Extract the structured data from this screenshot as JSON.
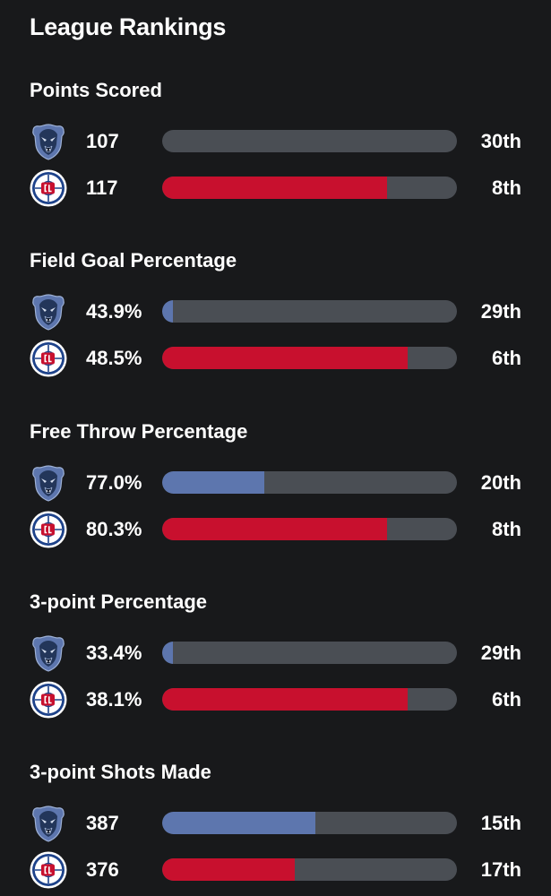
{
  "page": {
    "title": "League Rankings"
  },
  "colors": {
    "background": "#18191b",
    "track": "#4a4e54",
    "grizzlies_bar": "#5d76ae",
    "clippers_bar": "#c8102e",
    "grizzlies_logo": "#23365a",
    "clippers_logo": "#1d428a"
  },
  "teams": {
    "grizzlies": {
      "logo_icon": "grizzlies-logo-icon"
    },
    "clippers": {
      "logo_icon": "clippers-logo-icon"
    }
  },
  "stats": [
    {
      "title": "Points Scored",
      "rows": [
        {
          "team": "grizzlies",
          "value": "107",
          "rank": "30th",
          "rank_number": 30,
          "bar_fill_fraction": 0.0
        },
        {
          "team": "clippers",
          "value": "117",
          "rank": "8th",
          "rank_number": 8,
          "bar_fill_fraction": 0.763
        }
      ]
    },
    {
      "title": "Field Goal Percentage",
      "rows": [
        {
          "team": "grizzlies",
          "value": "43.9%",
          "rank": "29th",
          "rank_number": 29,
          "bar_fill_fraction": 0.034
        },
        {
          "team": "clippers",
          "value": "48.5%",
          "rank": "6th",
          "rank_number": 6,
          "bar_fill_fraction": 0.833
        }
      ]
    },
    {
      "title": "Free Throw Percentage",
      "rows": [
        {
          "team": "grizzlies",
          "value": "77.0%",
          "rank": "20th",
          "rank_number": 20,
          "bar_fill_fraction": 0.345
        },
        {
          "team": "clippers",
          "value": "80.3%",
          "rank": "8th",
          "rank_number": 8,
          "bar_fill_fraction": 0.763
        }
      ]
    },
    {
      "title": "3-point Percentage",
      "rows": [
        {
          "team": "grizzlies",
          "value": "33.4%",
          "rank": "29th",
          "rank_number": 29,
          "bar_fill_fraction": 0.034
        },
        {
          "team": "clippers",
          "value": "38.1%",
          "rank": "6th",
          "rank_number": 6,
          "bar_fill_fraction": 0.833
        }
      ]
    },
    {
      "title": "3-point Shots Made",
      "rows": [
        {
          "team": "grizzlies",
          "value": "387",
          "rank": "15th",
          "rank_number": 15,
          "bar_fill_fraction": 0.52
        },
        {
          "team": "clippers",
          "value": "376",
          "rank": "17th",
          "rank_number": 17,
          "bar_fill_fraction": 0.45
        }
      ]
    }
  ]
}
